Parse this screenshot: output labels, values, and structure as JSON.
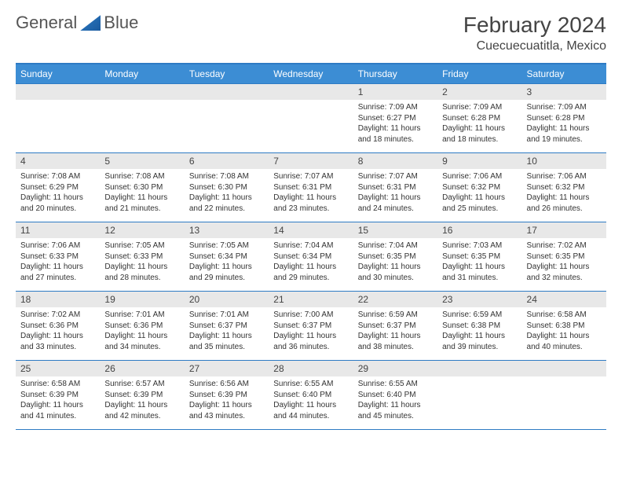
{
  "logo": {
    "part1": "General",
    "part2": "Blue"
  },
  "title": "February 2024",
  "location": "Cuecuecuatitla, Mexico",
  "colors": {
    "header_bg": "#3c8dd4",
    "border": "#2e7bc4",
    "daynum_bg": "#e8e8e8",
    "text": "#333333",
    "page_bg": "#ffffff"
  },
  "typography": {
    "title_fontsize": 28,
    "location_fontsize": 16,
    "dow_fontsize": 12,
    "body_fontsize": 10
  },
  "dow": [
    "Sunday",
    "Monday",
    "Tuesday",
    "Wednesday",
    "Thursday",
    "Friday",
    "Saturday"
  ],
  "weeks": [
    [
      {
        "day": "",
        "sunrise": "",
        "sunset": "",
        "daylight": ""
      },
      {
        "day": "",
        "sunrise": "",
        "sunset": "",
        "daylight": ""
      },
      {
        "day": "",
        "sunrise": "",
        "sunset": "",
        "daylight": ""
      },
      {
        "day": "",
        "sunrise": "",
        "sunset": "",
        "daylight": ""
      },
      {
        "day": "1",
        "sunrise": "Sunrise: 7:09 AM",
        "sunset": "Sunset: 6:27 PM",
        "daylight": "Daylight: 11 hours and 18 minutes."
      },
      {
        "day": "2",
        "sunrise": "Sunrise: 7:09 AM",
        "sunset": "Sunset: 6:28 PM",
        "daylight": "Daylight: 11 hours and 18 minutes."
      },
      {
        "day": "3",
        "sunrise": "Sunrise: 7:09 AM",
        "sunset": "Sunset: 6:28 PM",
        "daylight": "Daylight: 11 hours and 19 minutes."
      }
    ],
    [
      {
        "day": "4",
        "sunrise": "Sunrise: 7:08 AM",
        "sunset": "Sunset: 6:29 PM",
        "daylight": "Daylight: 11 hours and 20 minutes."
      },
      {
        "day": "5",
        "sunrise": "Sunrise: 7:08 AM",
        "sunset": "Sunset: 6:30 PM",
        "daylight": "Daylight: 11 hours and 21 minutes."
      },
      {
        "day": "6",
        "sunrise": "Sunrise: 7:08 AM",
        "sunset": "Sunset: 6:30 PM",
        "daylight": "Daylight: 11 hours and 22 minutes."
      },
      {
        "day": "7",
        "sunrise": "Sunrise: 7:07 AM",
        "sunset": "Sunset: 6:31 PM",
        "daylight": "Daylight: 11 hours and 23 minutes."
      },
      {
        "day": "8",
        "sunrise": "Sunrise: 7:07 AM",
        "sunset": "Sunset: 6:31 PM",
        "daylight": "Daylight: 11 hours and 24 minutes."
      },
      {
        "day": "9",
        "sunrise": "Sunrise: 7:06 AM",
        "sunset": "Sunset: 6:32 PM",
        "daylight": "Daylight: 11 hours and 25 minutes."
      },
      {
        "day": "10",
        "sunrise": "Sunrise: 7:06 AM",
        "sunset": "Sunset: 6:32 PM",
        "daylight": "Daylight: 11 hours and 26 minutes."
      }
    ],
    [
      {
        "day": "11",
        "sunrise": "Sunrise: 7:06 AM",
        "sunset": "Sunset: 6:33 PM",
        "daylight": "Daylight: 11 hours and 27 minutes."
      },
      {
        "day": "12",
        "sunrise": "Sunrise: 7:05 AM",
        "sunset": "Sunset: 6:33 PM",
        "daylight": "Daylight: 11 hours and 28 minutes."
      },
      {
        "day": "13",
        "sunrise": "Sunrise: 7:05 AM",
        "sunset": "Sunset: 6:34 PM",
        "daylight": "Daylight: 11 hours and 29 minutes."
      },
      {
        "day": "14",
        "sunrise": "Sunrise: 7:04 AM",
        "sunset": "Sunset: 6:34 PM",
        "daylight": "Daylight: 11 hours and 29 minutes."
      },
      {
        "day": "15",
        "sunrise": "Sunrise: 7:04 AM",
        "sunset": "Sunset: 6:35 PM",
        "daylight": "Daylight: 11 hours and 30 minutes."
      },
      {
        "day": "16",
        "sunrise": "Sunrise: 7:03 AM",
        "sunset": "Sunset: 6:35 PM",
        "daylight": "Daylight: 11 hours and 31 minutes."
      },
      {
        "day": "17",
        "sunrise": "Sunrise: 7:02 AM",
        "sunset": "Sunset: 6:35 PM",
        "daylight": "Daylight: 11 hours and 32 minutes."
      }
    ],
    [
      {
        "day": "18",
        "sunrise": "Sunrise: 7:02 AM",
        "sunset": "Sunset: 6:36 PM",
        "daylight": "Daylight: 11 hours and 33 minutes."
      },
      {
        "day": "19",
        "sunrise": "Sunrise: 7:01 AM",
        "sunset": "Sunset: 6:36 PM",
        "daylight": "Daylight: 11 hours and 34 minutes."
      },
      {
        "day": "20",
        "sunrise": "Sunrise: 7:01 AM",
        "sunset": "Sunset: 6:37 PM",
        "daylight": "Daylight: 11 hours and 35 minutes."
      },
      {
        "day": "21",
        "sunrise": "Sunrise: 7:00 AM",
        "sunset": "Sunset: 6:37 PM",
        "daylight": "Daylight: 11 hours and 36 minutes."
      },
      {
        "day": "22",
        "sunrise": "Sunrise: 6:59 AM",
        "sunset": "Sunset: 6:37 PM",
        "daylight": "Daylight: 11 hours and 38 minutes."
      },
      {
        "day": "23",
        "sunrise": "Sunrise: 6:59 AM",
        "sunset": "Sunset: 6:38 PM",
        "daylight": "Daylight: 11 hours and 39 minutes."
      },
      {
        "day": "24",
        "sunrise": "Sunrise: 6:58 AM",
        "sunset": "Sunset: 6:38 PM",
        "daylight": "Daylight: 11 hours and 40 minutes."
      }
    ],
    [
      {
        "day": "25",
        "sunrise": "Sunrise: 6:58 AM",
        "sunset": "Sunset: 6:39 PM",
        "daylight": "Daylight: 11 hours and 41 minutes."
      },
      {
        "day": "26",
        "sunrise": "Sunrise: 6:57 AM",
        "sunset": "Sunset: 6:39 PM",
        "daylight": "Daylight: 11 hours and 42 minutes."
      },
      {
        "day": "27",
        "sunrise": "Sunrise: 6:56 AM",
        "sunset": "Sunset: 6:39 PM",
        "daylight": "Daylight: 11 hours and 43 minutes."
      },
      {
        "day": "28",
        "sunrise": "Sunrise: 6:55 AM",
        "sunset": "Sunset: 6:40 PM",
        "daylight": "Daylight: 11 hours and 44 minutes."
      },
      {
        "day": "29",
        "sunrise": "Sunrise: 6:55 AM",
        "sunset": "Sunset: 6:40 PM",
        "daylight": "Daylight: 11 hours and 45 minutes."
      },
      {
        "day": "",
        "sunrise": "",
        "sunset": "",
        "daylight": ""
      },
      {
        "day": "",
        "sunrise": "",
        "sunset": "",
        "daylight": ""
      }
    ]
  ]
}
